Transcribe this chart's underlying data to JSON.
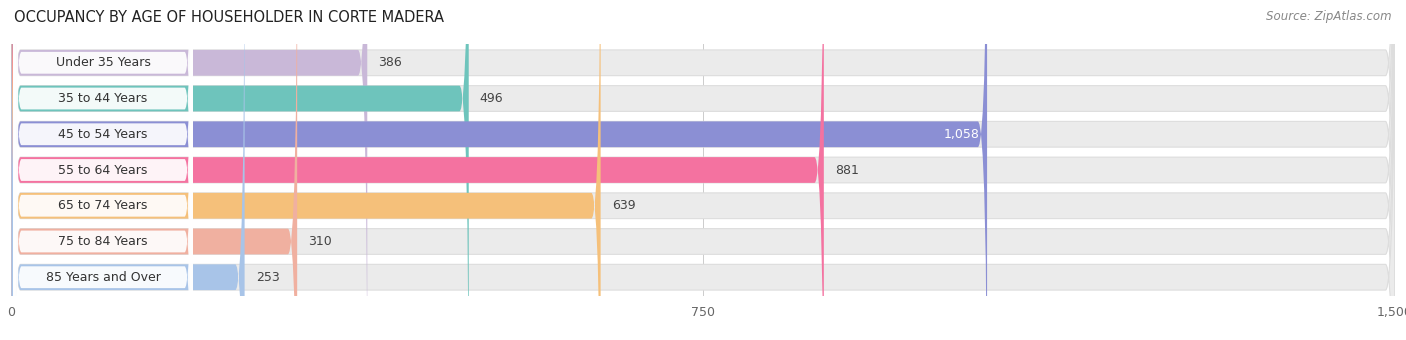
{
  "title": "OCCUPANCY BY AGE OF HOUSEHOLDER IN CORTE MADERA",
  "source": "Source: ZipAtlas.com",
  "categories": [
    "Under 35 Years",
    "35 to 44 Years",
    "45 to 54 Years",
    "55 to 64 Years",
    "65 to 74 Years",
    "75 to 84 Years",
    "85 Years and Over"
  ],
  "values": [
    386,
    496,
    1058,
    881,
    639,
    310,
    253
  ],
  "bar_colors": [
    "#c9b8d8",
    "#6ec4bc",
    "#8b8fd4",
    "#f472a0",
    "#f5c07a",
    "#f0b0a0",
    "#a8c4e8"
  ],
  "xlim": [
    0,
    1500
  ],
  "xticks": [
    0,
    750,
    1500
  ],
  "title_fontsize": 10.5,
  "source_fontsize": 8.5,
  "label_fontsize": 9,
  "value_inside_color": "#ffffff",
  "value_outside_color": "#444444",
  "value_threshold": 1000,
  "background_color": "#ffffff",
  "bar_bg_color": "#ebebeb",
  "bar_height": 0.72
}
